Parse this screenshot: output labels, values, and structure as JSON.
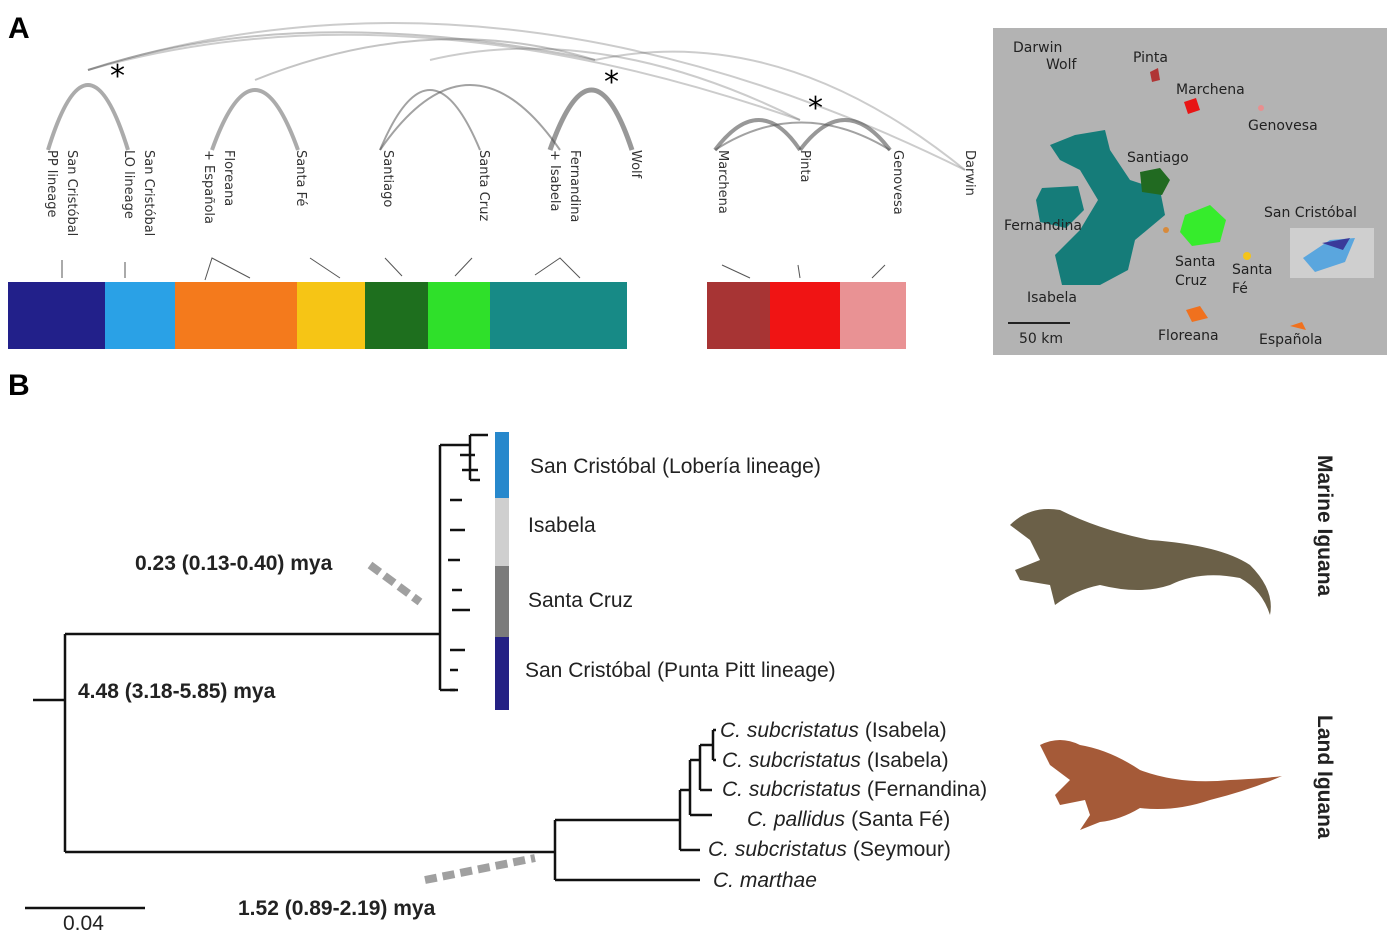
{
  "panel_a": {
    "label": "A",
    "network_labels": [
      [
        "San Cristóbal",
        "PP lineage"
      ],
      [
        "San Cristóbal",
        "LO lineage"
      ],
      [
        "Floreana",
        "+ Española"
      ],
      [
        "Santa Fé"
      ],
      [
        "Santiago"
      ],
      [
        "Santa Cruz"
      ],
      [
        "Fernandina",
        "+ Isabela"
      ],
      [
        "Wolf"
      ],
      [
        "Marchena"
      ],
      [
        "Pinta"
      ],
      [
        "Genovesa"
      ],
      [
        "Darwin"
      ]
    ],
    "asterisks": [
      "*",
      "*",
      "*"
    ],
    "map": {
      "labels": [
        [
          "Darwin"
        ],
        [
          "Wolf"
        ],
        [
          "Pinta"
        ],
        [
          "Marchena"
        ],
        [
          "Genovesa"
        ],
        [
          "Santiago"
        ],
        [
          "San Cristóbal"
        ],
        [
          "Fernandina"
        ],
        [
          "Santa",
          "Cruz"
        ],
        [
          "Santa",
          "Fé"
        ],
        [
          "Isabela"
        ],
        [
          "Floreana"
        ],
        [
          "Española"
        ]
      ],
      "scale": "50 km"
    }
  },
  "panel_b": {
    "label": "B",
    "marine_clades": [
      [
        "San Cristóbal",
        "(Lobería lineage)"
      ],
      [
        "Isabela"
      ],
      [
        "Santa Cruz"
      ],
      [
        "San Cristóbal",
        "(Punta Pitt lineage)"
      ]
    ],
    "land_taxa": [
      [
        "C. subcristatus",
        "(Isabela)"
      ],
      [
        "C. subcristatus",
        "(Isabela)"
      ],
      [
        "C. subcristatus",
        "(Fernandina)"
      ],
      [
        "C. pallidus",
        "(Santa Fé)"
      ],
      [
        "C. subcristatus",
        "(Seymour)"
      ],
      [
        "C. marthae"
      ]
    ],
    "node_ages": [
      "0.23 (0.13-0.40) mya",
      "4.48 (3.18-5.85) mya",
      "1.52 (0.89-2.19) mya"
    ],
    "group_labels": [
      "Marine Iguana",
      "Land Iguana"
    ],
    "scale": "0.04"
  }
}
